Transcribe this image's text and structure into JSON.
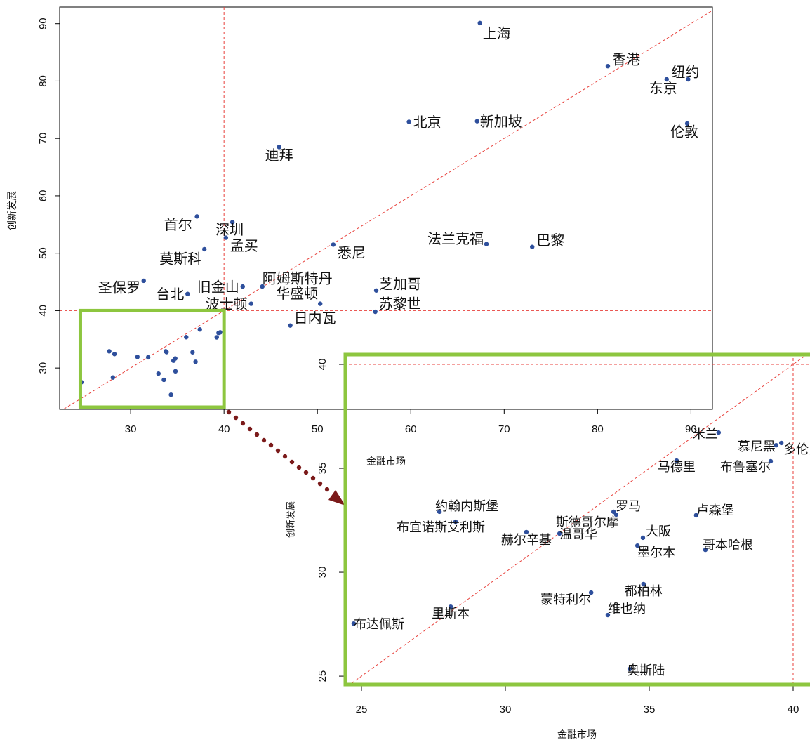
{
  "chart_data": [
    {
      "type": "scatter",
      "x_label": "金融市场",
      "y_label": "创新发展",
      "color": "#2e4f9c",
      "labels": [
        "上海",
        "香港",
        "纽约",
        "东京",
        "北京",
        "新加坡",
        "伦敦",
        "迪拜",
        "首尔",
        "深圳",
        "孟买",
        "莫斯科",
        "悉尼",
        "法兰克福",
        "巴黎",
        "圣保罗",
        "台北",
        "旧金山",
        "阿姆斯特丹",
        "波士顿",
        "华盛顿",
        "芝加哥",
        "苏黎世",
        "日内瓦",
        null,
        null,
        null,
        null,
        null,
        null,
        null,
        null,
        null,
        null,
        null,
        null,
        null,
        null,
        null,
        null,
        null,
        null,
        null,
        null,
        null
      ],
      "x": [
        67.4,
        81.1,
        89.7,
        87.4,
        59.8,
        67.1,
        89.6,
        45.9,
        37.1,
        40.9,
        40.2,
        37.9,
        51.7,
        68.1,
        73.0,
        31.4,
        36.1,
        42.0,
        44.1,
        42.9,
        50.3,
        56.3,
        56.2,
        47.1,
        37.41,
        39.41,
        39.59,
        35.95,
        39.22,
        27.71,
        28.27,
        33.85,
        31.88,
        30.73,
        33.76,
        36.63,
        34.78,
        34.59,
        36.95,
        34.8,
        32.98,
        33.56,
        28.1,
        24.73,
        34.32
      ],
      "values": [
        90.1,
        82.6,
        80.3,
        80.3,
        72.9,
        73.0,
        72.6,
        68.5,
        56.4,
        55.4,
        52.7,
        50.7,
        51.5,
        51.6,
        51.1,
        45.2,
        42.9,
        44.2,
        44.2,
        41.2,
        41.2,
        43.5,
        39.8,
        37.4,
        36.72,
        36.11,
        36.22,
        35.37,
        35.34,
        32.91,
        32.43,
        32.77,
        31.86,
        31.93,
        32.91,
        32.74,
        31.66,
        31.28,
        31.08,
        29.43,
        29.02,
        27.94,
        28.34,
        27.53,
        25.34
      ],
      "xlim": [
        22.4,
        92.3
      ],
      "ylim": [
        22.8,
        92.9
      ],
      "xticks": [
        30,
        40,
        50,
        60,
        70,
        80,
        90
      ],
      "yticks": [
        30,
        40,
        50,
        60,
        70,
        80,
        90
      ],
      "ref_x": 40,
      "ref_y": 40,
      "diagonal": true
    },
    {
      "type": "scatter",
      "x_label": "金融市场",
      "y_label": "创新发展",
      "color": "#2e4f9c",
      "labels": [
        "米兰",
        "慕尼黑",
        "多伦多",
        "马德里",
        "布鲁塞尔",
        "约翰内斯堡",
        "布宜诺斯艾利斯",
        "斯德哥尔摩",
        "温哥华",
        "赫尔辛基",
        "罗马",
        "卢森堡",
        "大阪",
        "墨尔本",
        "哥本哈根",
        "都柏林",
        "蒙特利尔",
        "维也纳",
        "里斯本",
        "布达佩斯",
        "奥斯陆"
      ],
      "x": [
        37.41,
        39.41,
        39.59,
        35.95,
        39.22,
        27.71,
        28.27,
        33.85,
        31.88,
        30.73,
        33.76,
        36.63,
        34.78,
        34.59,
        36.95,
        34.8,
        32.98,
        33.56,
        28.1,
        24.73,
        34.32
      ],
      "values": [
        36.72,
        36.11,
        36.22,
        35.37,
        35.34,
        32.91,
        32.43,
        32.77,
        31.86,
        31.93,
        32.91,
        32.74,
        31.66,
        31.28,
        31.08,
        29.43,
        29.02,
        27.94,
        28.34,
        27.53,
        25.34
      ],
      "xlim": [
        24.39,
        40.61
      ],
      "ylim": [
        24.53,
        40.54
      ],
      "xticks": [
        25,
        30,
        35,
        40
      ],
      "yticks": [
        25,
        30,
        35,
        40
      ],
      "ref_x": 40,
      "ref_y": 40,
      "diagonal": true
    }
  ]
}
